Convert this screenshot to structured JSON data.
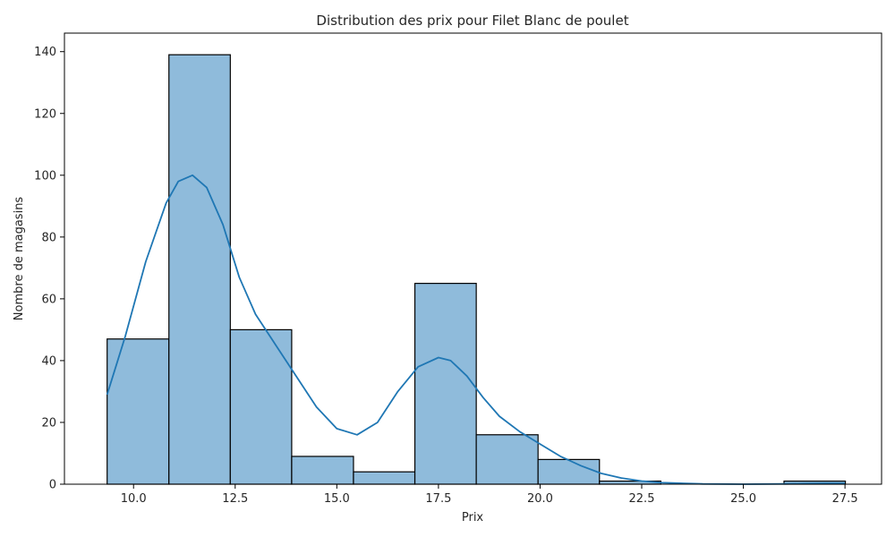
{
  "chart_data": {
    "type": "bar",
    "title": "Distribution des prix pour Filet Blanc de poulet",
    "xlabel": "Prix",
    "ylabel": "Nombre de magasins",
    "xlim": [
      8.3,
      28.4
    ],
    "ylim": [
      0,
      146
    ],
    "xticks": [
      10.0,
      12.5,
      15.0,
      17.5,
      20.0,
      22.5,
      25.0,
      27.5
    ],
    "xtick_labels": [
      "10.0",
      "12.5",
      "15.0",
      "17.5",
      "20.0",
      "22.5",
      "25.0",
      "27.5"
    ],
    "yticks": [
      0,
      20,
      40,
      60,
      80,
      100,
      120,
      140
    ],
    "ytick_labels": [
      "0",
      "20",
      "40",
      "60",
      "80",
      "100",
      "120",
      "140"
    ],
    "bins": [
      {
        "x0": 9.35,
        "x1": 10.87,
        "count": 47
      },
      {
        "x0": 10.87,
        "x1": 12.38,
        "count": 139
      },
      {
        "x0": 12.38,
        "x1": 13.89,
        "count": 50
      },
      {
        "x0": 13.89,
        "x1": 15.41,
        "count": 9
      },
      {
        "x0": 15.41,
        "x1": 16.92,
        "count": 4
      },
      {
        "x0": 16.92,
        "x1": 18.43,
        "count": 65
      },
      {
        "x0": 18.43,
        "x1": 19.95,
        "count": 16
      },
      {
        "x0": 19.95,
        "x1": 21.46,
        "count": 8
      },
      {
        "x0": 21.46,
        "x1": 22.97,
        "count": 1
      },
      {
        "x0": 22.97,
        "x1": 24.49,
        "count": 0
      },
      {
        "x0": 24.49,
        "x1": 26.0,
        "count": 0
      },
      {
        "x0": 26.0,
        "x1": 27.51,
        "count": 1
      }
    ],
    "kde": {
      "x": [
        9.35,
        9.8,
        10.3,
        10.8,
        11.1,
        11.45,
        11.8,
        12.2,
        12.6,
        13.0,
        13.5,
        14.0,
        14.5,
        15.0,
        15.5,
        16.0,
        16.5,
        17.0,
        17.5,
        17.8,
        18.2,
        18.6,
        19.0,
        19.5,
        20.0,
        20.5,
        21.0,
        21.5,
        22.0,
        22.5,
        23.0,
        24.0,
        25.0,
        26.0,
        26.5,
        27.0,
        27.5
      ],
      "y": [
        29,
        48,
        72,
        91,
        98,
        100,
        96,
        84,
        67,
        55,
        45,
        35,
        25,
        18,
        16,
        20,
        30,
        38,
        41,
        40,
        35,
        28,
        22,
        17,
        13,
        9,
        6,
        3.5,
        2,
        1,
        0.5,
        0.1,
        0,
        0.1,
        0.2,
        0.3,
        0.3
      ]
    },
    "colors": {
      "bar_fill": "#8fbbdb",
      "bar_edge": "#000000",
      "kde_line": "#1f77b4",
      "axis": "#000000",
      "text": "#262626"
    },
    "grid": false,
    "legend": "none"
  }
}
